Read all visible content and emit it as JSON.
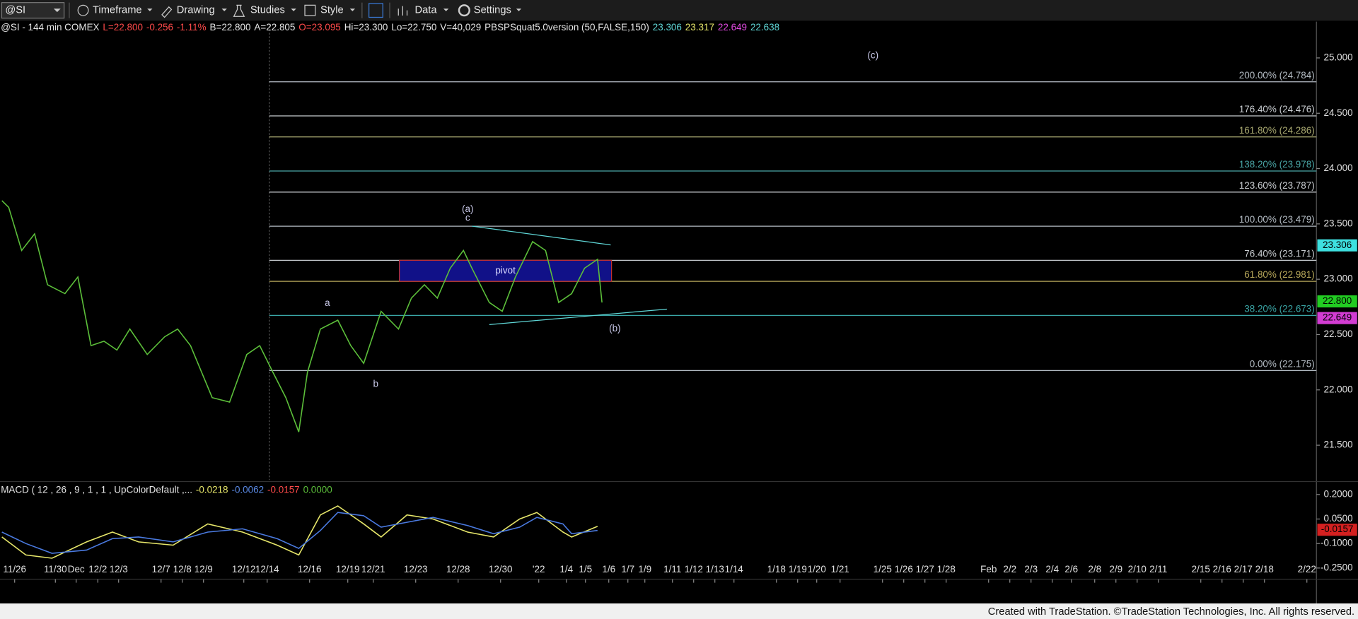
{
  "toolbar": {
    "symbol": "@SI",
    "items": [
      "Timeframe",
      "Drawing",
      "Studies",
      "Style",
      "Data",
      "Settings"
    ]
  },
  "footer": "Created with TradeStation. ©TradeStation Technologies, Inc. All rights reserved.",
  "chart_data": [
    {
      "type": "line",
      "title": "@SI - 144 min COMEX",
      "quote": [
        {
          "text": "L=22.800",
          "color": "#ff4a4a"
        },
        {
          "text": "-0.256",
          "color": "#ff4a4a"
        },
        {
          "text": "-1.11%",
          "color": "#ff4a4a"
        },
        {
          "text": "B=22.800",
          "color": "#e6e6e6"
        },
        {
          "text": "A=22.805",
          "color": "#e6e6e6"
        },
        {
          "text": "O=23.095",
          "color": "#ff4a4a"
        },
        {
          "text": "Hi=23.300",
          "color": "#e6e6e6"
        },
        {
          "text": "Lo=22.750",
          "color": "#e6e6e6"
        },
        {
          "text": "V=40,029",
          "color": "#e6e6e6"
        },
        {
          "text": "PBSPSquat5.0version (50,FALSE,150)",
          "color": "#e6e6e6"
        },
        {
          "text": "23.306",
          "color": "#5fd6d6"
        },
        {
          "text": "23.317",
          "color": "#e6e66a"
        },
        {
          "text": "22.649",
          "color": "#e04ae0"
        },
        {
          "text": "22.638",
          "color": "#5fd6d6"
        }
      ],
      "x": [
        -0.6,
        -0.28,
        0.33,
        0.94,
        1.55,
        2.37,
        2.98,
        3.6,
        4.21,
        4.82,
        5.43,
        6.25,
        7.07,
        7.68,
        8.29,
        9.31,
        10.13,
        10.94,
        11.55,
        12.17,
        12.78,
        13.39,
        13.8,
        14.41,
        15.23,
        15.84,
        16.45,
        17.27,
        18.09,
        18.7,
        19.31,
        19.92,
        20.53,
        21.15,
        21.55,
        22.37,
        22.98,
        23.6,
        24.41,
        25.02,
        25.64,
        26.25,
        26.86,
        27.47,
        27.68
      ],
      "series": [
        {
          "color": "#5cbf3a",
          "values": [
            23.71,
            23.65,
            23.26,
            23.41,
            22.95,
            22.87,
            23.02,
            22.4,
            22.44,
            22.36,
            22.55,
            22.32,
            22.48,
            22.55,
            22.4,
            21.93,
            21.89,
            22.32,
            22.4,
            22.16,
            21.93,
            21.62,
            22.16,
            22.55,
            22.63,
            22.4,
            22.24,
            22.71,
            22.55,
            22.83,
            22.95,
            22.83,
            23.1,
            23.26,
            23.1,
            22.79,
            22.71,
            23.02,
            23.34,
            23.26,
            22.79,
            22.87,
            23.1,
            23.18,
            22.79
          ]
        }
      ],
      "xlim": [
        -0.69,
        61.35
      ],
      "ylim": [
        21.1875,
        25.328
      ],
      "yticks": [
        {
          "value": 25,
          "label": "25.000"
        },
        {
          "value": 24.5,
          "label": "24.500"
        },
        {
          "value": 24,
          "label": "24.000"
        },
        {
          "value": 23.5,
          "label": "23.500"
        },
        {
          "value": 23,
          "label": "23.000"
        },
        {
          "value": 22.5,
          "label": "22.500"
        },
        {
          "value": 22,
          "label": "22.000"
        },
        {
          "value": 21.5,
          "label": "21.500"
        }
      ],
      "fib_start": 12.0,
      "fib_levels": [
        {
          "value": 24.784,
          "label": "200.00% (24.784)",
          "color": "#b4bcc4"
        },
        {
          "value": 24.476,
          "label": "176.40% (24.476)",
          "color": "#c8ccd0"
        },
        {
          "value": 24.286,
          "label": "161.80% (24.286)",
          "color": "#a8a870"
        },
        {
          "value": 23.978,
          "label": "138.20% (23.978)",
          "color": "#4aa6a6"
        },
        {
          "value": 23.787,
          "label": "123.60% (23.787)",
          "color": "#c8ccd0"
        },
        {
          "value": 23.479,
          "label": "100.00% (23.479)",
          "color": "#b4bcc4"
        },
        {
          "value": 23.171,
          "label": "76.40% (23.171)",
          "color": "#c8ccd0"
        },
        {
          "value": 22.981,
          "label": "61.80% (22.981)",
          "color": "#b8a85a"
        },
        {
          "value": 22.673,
          "label": "38.20% (22.673)",
          "color": "#3aa6a6"
        },
        {
          "value": 22.175,
          "label": "0.00% (22.175)",
          "color": "#b4bcc4"
        }
      ],
      "pivot_zone": {
        "label": "pivot",
        "x": [
          18.13,
          28.13
        ],
        "y": [
          22.981,
          23.171
        ],
        "color": "#1414a0"
      },
      "trendlines": [
        {
          "x": [
            21.55,
            28.09
          ],
          "y": [
            23.48,
            23.31
          ],
          "color": "#5fd6d6"
        },
        {
          "x": [
            22.37,
            30.74
          ],
          "y": [
            22.59,
            22.73
          ],
          "color": "#5fd6d6"
        }
      ],
      "annotations": [
        {
          "text": "(a)",
          "x": 21.35,
          "y": 23.63
        },
        {
          "text": "c",
          "x": 21.35,
          "y": 23.55
        },
        {
          "text": "(b)",
          "x": 28.29,
          "y": 22.55
        },
        {
          "text": "(c)",
          "x": 40.45,
          "y": 25.02
        },
        {
          "text": "a",
          "x": 14.74,
          "y": 22.78
        },
        {
          "text": "b",
          "x": 17.02,
          "y": 22.05
        }
      ],
      "price_markers": [
        {
          "value": 23.306,
          "label": "23.306",
          "color": "#3ee0e0"
        },
        {
          "value": 22.8,
          "label": "22.800",
          "color": "#22cc22"
        },
        {
          "value": 22.649,
          "label": "22.649",
          "color": "#d23cd2"
        }
      ]
    },
    {
      "type": "line",
      "title": "MACD ( 12 , 26 , 9 , 1 , 1 , UpColorDefault ,...",
      "quote": [
        {
          "text": "-0.0218",
          "color": "#e6e66a"
        },
        {
          "text": "-0.0062",
          "color": "#5a8ae6"
        },
        {
          "text": "-0.0157",
          "color": "#ff4a4a"
        },
        {
          "text": "0.0000",
          "color": "#5cbf3a"
        }
      ],
      "x": [
        -0.6,
        0.53,
        1.76,
        3.39,
        4.61,
        5.84,
        7.47,
        9.1,
        10.74,
        12.37,
        13.39,
        14.41,
        15.23,
        16.45,
        17.27,
        18.49,
        19.72,
        21.35,
        22.57,
        23.8,
        24.61,
        25.84,
        26.25,
        27.47
      ],
      "series": [
        {
          "color": "#e6e66a",
          "values": [
            -0.06,
            -0.17,
            -0.19,
            -0.09,
            -0.03,
            -0.09,
            -0.11,
            0.02,
            -0.03,
            -0.11,
            -0.17,
            0.075,
            0.13,
            0.02,
            -0.06,
            0.075,
            0.05,
            -0.03,
            -0.06,
            0.05,
            0.09,
            -0.03,
            -0.06,
            0.005
          ]
        },
        {
          "color": "#4a7ae0",
          "values": [
            -0.03,
            -0.1,
            -0.16,
            -0.14,
            -0.07,
            -0.06,
            -0.09,
            -0.03,
            -0.01,
            -0.07,
            -0.13,
            -0.02,
            0.09,
            0.07,
            0.0,
            0.03,
            0.06,
            0.01,
            -0.04,
            0.0,
            0.06,
            0.02,
            -0.04,
            -0.02
          ]
        }
      ],
      "xlim": [
        -0.69,
        61.35
      ],
      "ylim": [
        -0.308,
        0.2635
      ],
      "yticks": [
        {
          "value": 0.2,
          "label": "0.2000"
        },
        {
          "value": 0.05,
          "label": "0.0500"
        },
        {
          "value": -0.1,
          "label": "-0.1000"
        },
        {
          "value": -0.25,
          "label": "-0.2500"
        }
      ],
      "price_markers": [
        {
          "value": -0.0157,
          "label": "-0.0157",
          "color": "#d42020"
        }
      ],
      "xticks": [
        {
          "value": 0,
          "label": "11/26"
        },
        {
          "value": 1.92,
          "label": "11/30"
        },
        {
          "value": 2.9,
          "label": "Dec"
        },
        {
          "value": 3.92,
          "label": "12/2"
        },
        {
          "value": 4.9,
          "label": "12/3"
        },
        {
          "value": 6.9,
          "label": "12/7"
        },
        {
          "value": 7.9,
          "label": "12/8"
        },
        {
          "value": 8.9,
          "label": "12/9"
        },
        {
          "value": 10.8,
          "label": "12/12"
        },
        {
          "value": 11.9,
          "label": "12/14"
        },
        {
          "value": 13.9,
          "label": "12/16"
        },
        {
          "value": 15.7,
          "label": "12/19"
        },
        {
          "value": 16.9,
          "label": "12/21"
        },
        {
          "value": 18.9,
          "label": "12/23"
        },
        {
          "value": 20.9,
          "label": "12/28"
        },
        {
          "value": 22.9,
          "label": "12/30"
        },
        {
          "value": 24.7,
          "label": "'22"
        },
        {
          "value": 26,
          "label": "1/4"
        },
        {
          "value": 26.9,
          "label": "1/5"
        },
        {
          "value": 28,
          "label": "1/6"
        },
        {
          "value": 28.9,
          "label": "1/7"
        },
        {
          "value": 29.7,
          "label": "1/9"
        },
        {
          "value": 31,
          "label": "1/11"
        },
        {
          "value": 32,
          "label": "1/12"
        },
        {
          "value": 33,
          "label": "1/13"
        },
        {
          "value": 33.9,
          "label": "1/14"
        },
        {
          "value": 35.9,
          "label": "1/18"
        },
        {
          "value": 36.9,
          "label": "1/19"
        },
        {
          "value": 37.8,
          "label": "1/20"
        },
        {
          "value": 38.9,
          "label": "1/21"
        },
        {
          "value": 40.9,
          "label": "1/25"
        },
        {
          "value": 41.9,
          "label": "1/26"
        },
        {
          "value": 42.9,
          "label": "1/27"
        },
        {
          "value": 43.9,
          "label": "1/28"
        },
        {
          "value": 45.9,
          "label": "Feb"
        },
        {
          "value": 46.9,
          "label": "2/2"
        },
        {
          "value": 47.9,
          "label": "2/3"
        },
        {
          "value": 48.9,
          "label": "2/4"
        },
        {
          "value": 49.8,
          "label": "2/6"
        },
        {
          "value": 50.9,
          "label": "2/8"
        },
        {
          "value": 51.9,
          "label": "2/9"
        },
        {
          "value": 52.9,
          "label": "2/10"
        },
        {
          "value": 53.9,
          "label": "2/11"
        },
        {
          "value": 55.9,
          "label": "2/15"
        },
        {
          "value": 56.9,
          "label": "2/16"
        },
        {
          "value": 57.9,
          "label": "2/17"
        },
        {
          "value": 58.9,
          "label": "2/18"
        },
        {
          "value": 60.9,
          "label": "2/22"
        }
      ]
    }
  ]
}
